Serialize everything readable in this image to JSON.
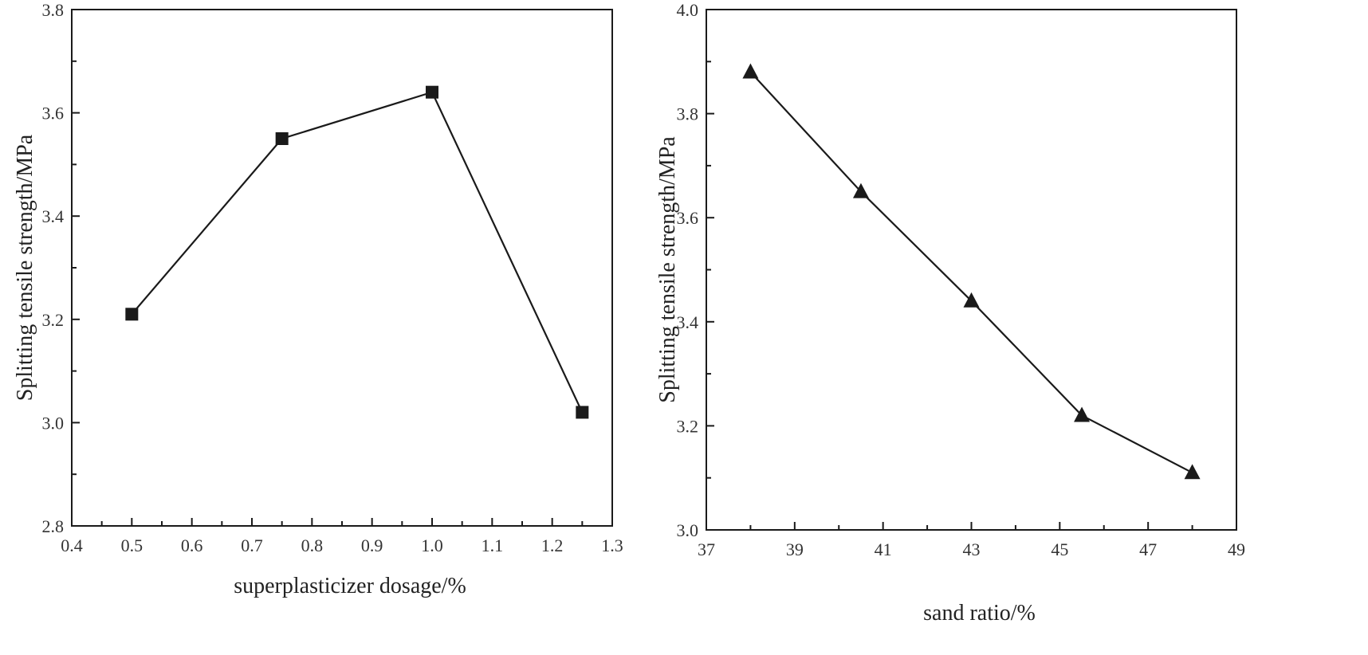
{
  "chart_data": [
    {
      "type": "line",
      "marker": "square",
      "xlabel": "superplasticizer dosage/%",
      "ylabel": "Splitting tensile strength/MPa",
      "xlim": [
        0.4,
        1.3
      ],
      "ylim": [
        2.8,
        3.8
      ],
      "xticks": [
        0.4,
        0.5,
        0.6,
        0.7,
        0.8,
        0.9,
        1.0,
        1.1,
        1.2,
        1.3
      ],
      "xtick_labels": [
        "0.4",
        "0.5",
        "0.6",
        "0.7",
        "0.8",
        "0.9",
        "1.0",
        "1.1",
        "1.2",
        "1.3"
      ],
      "yticks": [
        2.8,
        3.0,
        3.2,
        3.4,
        3.6,
        3.8
      ],
      "ytick_labels": [
        "2.8",
        "3.0",
        "3.2",
        "3.4",
        "3.6",
        "3.8"
      ],
      "x": [
        0.5,
        0.75,
        1.0,
        1.25
      ],
      "y": [
        3.21,
        3.55,
        3.64,
        3.02
      ],
      "color": "#1a1a1a"
    },
    {
      "type": "line",
      "marker": "triangle",
      "xlabel": "sand ratio/%",
      "ylabel": "Splitting tensile strength/MPa",
      "xlim": [
        37,
        49
      ],
      "ylim": [
        3.0,
        4.0
      ],
      "xticks": [
        37,
        39,
        41,
        43,
        45,
        47,
        49
      ],
      "xtick_labels": [
        "37",
        "39",
        "41",
        "43",
        "45",
        "47",
        "49"
      ],
      "yticks": [
        3.0,
        3.2,
        3.4,
        3.6,
        3.8,
        4.0
      ],
      "ytick_labels": [
        "3.0",
        "3.2",
        "3.4",
        "3.6",
        "3.8",
        "4.0"
      ],
      "x": [
        38,
        40.5,
        43,
        45.5,
        48
      ],
      "y": [
        3.88,
        3.65,
        3.44,
        3.22,
        3.11
      ],
      "color": "#1a1a1a"
    }
  ]
}
